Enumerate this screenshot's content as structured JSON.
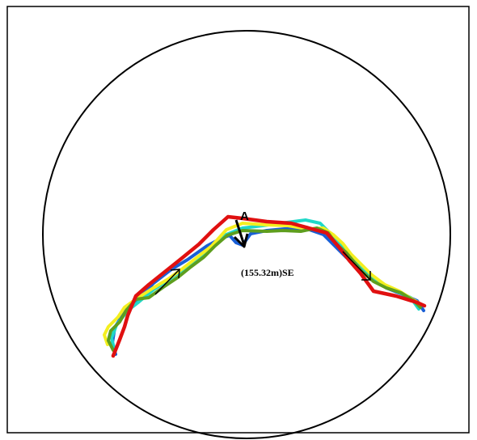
{
  "diagram": {
    "point_label": "A",
    "movement_label": "(155.32m)SE"
  },
  "colors": {
    "frame": "#000000",
    "circle": "#000000",
    "trace_blue": "#1a5fd6",
    "trace_cyan": "#20d8c8",
    "trace_yellow": "#f4ef20",
    "trace_green": "#5e9e1e",
    "trace_red": "#e01010",
    "arrow": "#000000"
  }
}
